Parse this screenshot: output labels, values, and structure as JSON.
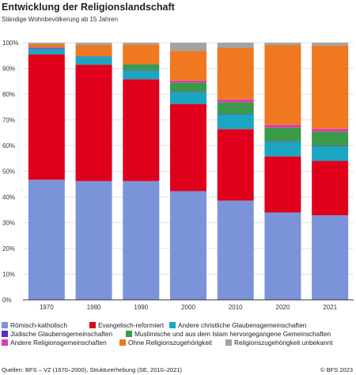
{
  "header": {
    "title": "Entwicklung der Religionslandschaft",
    "subtitle": "Ständige Wohnbevölkerung ab 15 Jahren"
  },
  "chart_data": {
    "type": "bar",
    "stacked": true,
    "categories": [
      "1970",
      "1980",
      "1990",
      "2000",
      "2010",
      "2020",
      "2021"
    ],
    "ylim": [
      0,
      100
    ],
    "yticks": [
      "0%",
      "10%",
      "20%",
      "30%",
      "40%",
      "50%",
      "60%",
      "70%",
      "80%",
      "90%",
      "100%"
    ],
    "grid": true,
    "legend_position": "bottom",
    "series": [
      {
        "name": "Römisch-katholisch",
        "color": "#7b93d8",
        "values": [
          46.7,
          46.2,
          46.2,
          42.3,
          38.6,
          34.0,
          32.9
        ]
      },
      {
        "name": "Evangelisch-reformiert",
        "color": "#e0001b",
        "values": [
          48.8,
          45.3,
          39.6,
          33.9,
          27.8,
          21.8,
          21.1
        ]
      },
      {
        "name": "Andere christliche Glaubensgemeinschaften",
        "color": "#1aa6c3",
        "values": [
          2.1,
          3.0,
          3.3,
          4.5,
          5.7,
          5.6,
          5.7
        ]
      },
      {
        "name": "Jüdische Glaubensgemeinschaften",
        "color": "#5b2bc7",
        "values": [
          0.3,
          0.2,
          0.2,
          0.2,
          0.2,
          0.2,
          0.2
        ]
      },
      {
        "name": "Muslimische und aus dem Islam hervorgegangene Gemeinschaften",
        "color": "#3a9a4a",
        "values": [
          0.2,
          0.0,
          2.3,
          3.6,
          4.5,
          5.4,
          5.5
        ]
      },
      {
        "name": "Andere Religionsgemeinschaften",
        "color": "#e03cb0",
        "values": [
          0.2,
          0.0,
          0.1,
          0.8,
          1.1,
          1.1,
          1.1
        ]
      },
      {
        "name": "Ohne Religionszugehörigkeit",
        "color": "#f07820",
        "values": [
          1.2,
          4.4,
          7.6,
          11.5,
          20.1,
          31.0,
          32.3
        ]
      },
      {
        "name": "Religionszugehörigkeit unbekannt",
        "color": "#a3a3a3",
        "values": [
          0.5,
          0.9,
          0.7,
          3.2,
          2.0,
          0.9,
          1.2
        ]
      }
    ]
  },
  "footer": {
    "source": "Quellen: BFS – VZ (1970–2000), Strukturerhebung (SE, 2010–2021)",
    "copyright": "© BFS 2023"
  }
}
